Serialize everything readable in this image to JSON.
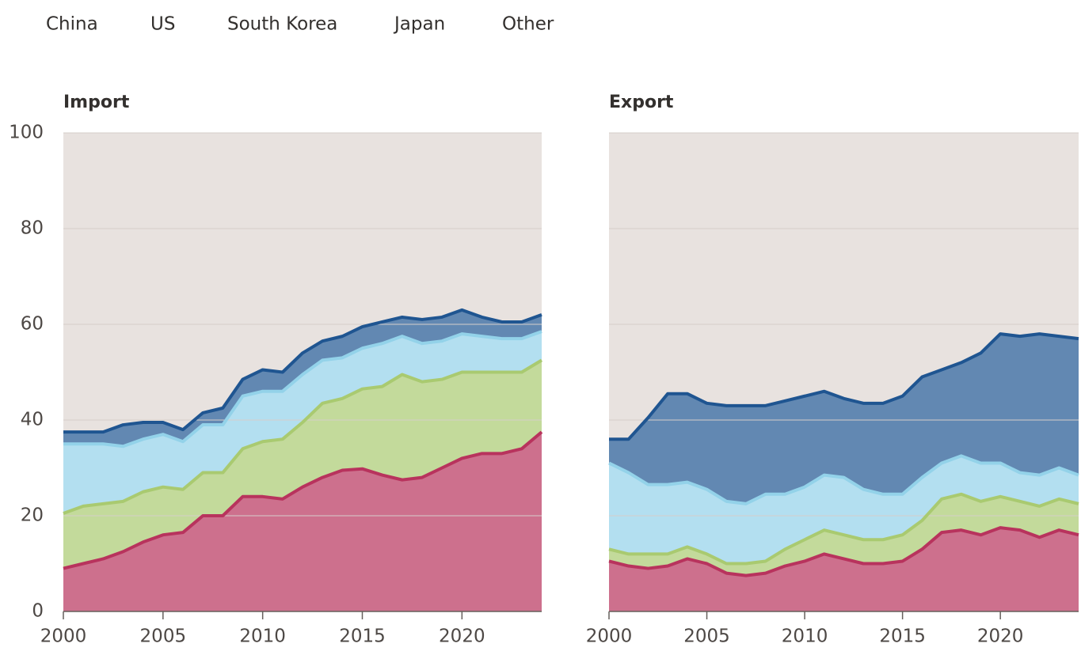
{
  "chart_data": [
    {
      "type": "area",
      "title": "Import",
      "x": [
        2000,
        2001,
        2002,
        2003,
        2004,
        2005,
        2006,
        2007,
        2008,
        2009,
        2010,
        2011,
        2012,
        2013,
        2014,
        2015,
        2016,
        2017,
        2018,
        2019,
        2020,
        2021,
        2022,
        2023,
        2024
      ],
      "series": [
        {
          "name": "China",
          "color": "#b8335d",
          "values": [
            9,
            10,
            11,
            12.5,
            14.5,
            16,
            16.5,
            20,
            20,
            24,
            24,
            23.5,
            26,
            28,
            29.5,
            29.8,
            28.5,
            27.5,
            28,
            30,
            32,
            33,
            33,
            34,
            37.5
          ]
        },
        {
          "name": "US",
          "color": "#a9ca70",
          "values": [
            11.5,
            12,
            11.5,
            10.5,
            10.5,
            10,
            9,
            9,
            9,
            10,
            11.5,
            12.5,
            13.5,
            15.5,
            15,
            16.7,
            18.5,
            22,
            20,
            18.5,
            18,
            17,
            17,
            16,
            15
          ]
        },
        {
          "name": "South Korea",
          "color": "#93d2e9",
          "values": [
            14.5,
            13,
            12.5,
            11.5,
            11,
            11,
            10,
            10,
            10,
            11,
            10.5,
            10,
            10,
            9,
            8.5,
            8.5,
            9,
            8,
            8,
            8,
            8,
            7.5,
            7,
            7,
            6
          ]
        },
        {
          "name": "Japan",
          "color": "#1f5591",
          "values": [
            2.5,
            2.5,
            2.5,
            4.5,
            3.5,
            2.5,
            2.5,
            2.5,
            3.5,
            3.5,
            4.5,
            4,
            4.5,
            4,
            4.5,
            4.5,
            4.5,
            4,
            5,
            5,
            5,
            4,
            3.5,
            3.5,
            3.5
          ]
        },
        {
          "name": "Other",
          "color": "#e8e2df",
          "values": [
            62.5,
            62.5,
            62.5,
            61,
            60.5,
            60.5,
            62,
            58.5,
            57.5,
            51.5,
            49.5,
            50,
            46,
            43.5,
            42.5,
            40.5,
            39.5,
            38.5,
            39,
            38.5,
            37,
            38.5,
            39.5,
            39.5,
            38
          ]
        }
      ],
      "xlim": [
        2000,
        2024
      ],
      "xticks": [
        2000,
        2005,
        2010,
        2015,
        2020
      ],
      "ylim": [
        0,
        100
      ],
      "yticks": [
        0,
        20,
        40,
        60,
        80,
        100
      ],
      "grid": true
    },
    {
      "type": "area",
      "title": "Export",
      "x": [
        2000,
        2001,
        2002,
        2003,
        2004,
        2005,
        2006,
        2007,
        2008,
        2009,
        2010,
        2011,
        2012,
        2013,
        2014,
        2015,
        2016,
        2017,
        2018,
        2019,
        2020,
        2021,
        2022,
        2023,
        2024
      ],
      "series": [
        {
          "name": "China",
          "color": "#b8335d",
          "values": [
            10.5,
            9.5,
            9,
            9.5,
            11,
            10,
            8,
            7.5,
            8,
            9.5,
            10.5,
            12,
            11,
            10,
            10,
            10.5,
            13,
            16.5,
            17,
            16,
            17.5,
            17,
            15.5,
            17,
            16
          ]
        },
        {
          "name": "US",
          "color": "#a9ca70",
          "values": [
            2.5,
            2.5,
            3,
            2.5,
            2.5,
            2,
            2,
            2.5,
            2.5,
            3.5,
            4.5,
            5,
            5,
            5,
            5,
            5.5,
            6,
            7,
            7.5,
            7,
            6.5,
            6,
            6.5,
            6.5,
            6.5
          ]
        },
        {
          "name": "South Korea",
          "color": "#93d2e9",
          "values": [
            18,
            17,
            14.5,
            14.5,
            13.5,
            13.5,
            13,
            12.5,
            14,
            11.5,
            11,
            11.5,
            12,
            10.5,
            9.5,
            8.5,
            9,
            7.5,
            8,
            8,
            7,
            6,
            6.5,
            6.5,
            6
          ]
        },
        {
          "name": "Japan",
          "color": "#1f5591",
          "values": [
            5,
            7,
            14,
            19,
            18.5,
            18,
            20,
            20.5,
            18.5,
            19.5,
            19,
            17.5,
            16.5,
            18,
            19,
            20.5,
            21,
            19.5,
            19.5,
            23,
            27,
            28.5,
            29.5,
            27.5,
            28.5
          ]
        },
        {
          "name": "Other",
          "color": "#e8e2df",
          "values": [
            64,
            64,
            59.5,
            54.5,
            54.5,
            56.5,
            57,
            57,
            57,
            56,
            55,
            54,
            55.5,
            56.5,
            56.5,
            55,
            51,
            49.5,
            48,
            46,
            42,
            42.5,
            42,
            42.5,
            43
          ]
        }
      ],
      "xlim": [
        2000,
        2024
      ],
      "xticks": [
        2000,
        2005,
        2010,
        2015,
        2020
      ],
      "ylim": [
        0,
        100
      ],
      "yticks": [
        0,
        20,
        40,
        60,
        80,
        100
      ],
      "grid": true
    }
  ]
}
